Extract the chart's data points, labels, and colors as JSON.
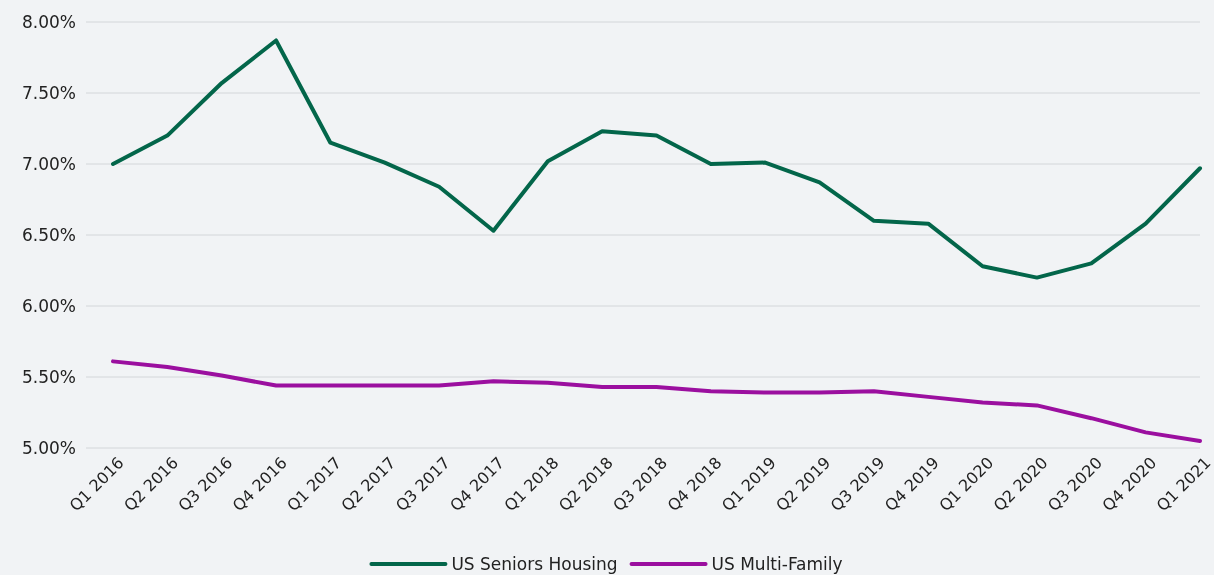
{
  "chart_data": {
    "type": "line",
    "categories": [
      "Q1 2016",
      "Q2 2016",
      "Q3 2016",
      "Q4 2016",
      "Q1 2017",
      "Q2 2017",
      "Q3 2017",
      "Q4 2017",
      "Q1 2018",
      "Q2 2018",
      "Q3 2018",
      "Q4 2018",
      "Q1 2019",
      "Q2 2019",
      "Q3 2019",
      "Q4 2019",
      "Q1 2020",
      "Q2 2020",
      "Q3 2020",
      "Q4 2020",
      "Q1 2021"
    ],
    "series": [
      {
        "name": "US Seniors Housing",
        "color": "#03664a",
        "values": [
          7.0,
          7.2,
          7.57,
          7.87,
          7.15,
          7.01,
          6.84,
          6.53,
          7.02,
          7.23,
          7.2,
          7.0,
          7.01,
          6.87,
          6.6,
          6.58,
          6.28,
          6.2,
          6.3,
          6.58,
          6.97
        ]
      },
      {
        "name": "US Multi-Family",
        "color": "#9b0f9f",
        "values": [
          5.61,
          5.57,
          5.51,
          5.44,
          5.44,
          5.44,
          5.44,
          5.47,
          5.46,
          5.43,
          5.43,
          5.4,
          5.39,
          5.39,
          5.4,
          5.36,
          5.32,
          5.3,
          5.21,
          5.11,
          5.05
        ]
      }
    ],
    "ylim": [
      5,
      8
    ],
    "yticks": [
      {
        "value": 5,
        "label": "5.00%"
      },
      {
        "value": 5.5,
        "label": "5.50%"
      },
      {
        "value": 6,
        "label": "6.00%"
      },
      {
        "value": 6.5,
        "label": "6.50%"
      },
      {
        "value": 7,
        "label": "7.00%"
      },
      {
        "value": 7.5,
        "label": "7.50%"
      },
      {
        "value": 8,
        "label": "8.00%"
      }
    ],
    "grid": "y",
    "legend": "bottom",
    "marker": "none",
    "line_style": "solid"
  }
}
